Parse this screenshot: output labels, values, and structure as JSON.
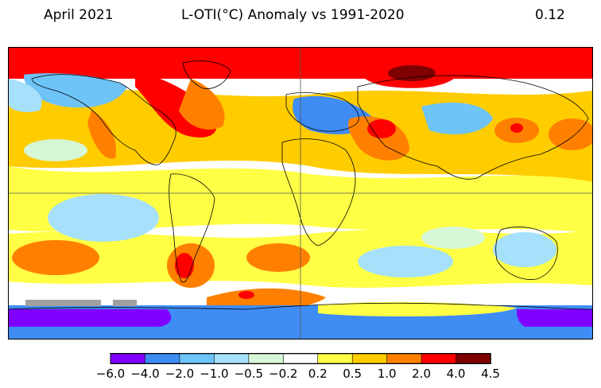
{
  "header": {
    "left": "April 2021",
    "center": "L-OTI(°C) Anomaly vs 1991-2020",
    "right": "0.12"
  },
  "legend": {
    "bins": [
      {
        "from": "-6.0",
        "to": "-4.0",
        "color": "#7f00ff"
      },
      {
        "from": "-4.0",
        "to": "-2.0",
        "color": "#3f8cf5"
      },
      {
        "from": "-2.0",
        "to": "-1.0",
        "color": "#6ec3f7"
      },
      {
        "from": "-1.0",
        "to": "-0.5",
        "color": "#a6e0fb"
      },
      {
        "from": "-0.5",
        "to": "-0.2",
        "color": "#d6f7d6"
      },
      {
        "from": "-0.2",
        "to": "0.2",
        "color": "#ffffff"
      },
      {
        "from": "0.2",
        "to": "0.5",
        "color": "#ffff46"
      },
      {
        "from": "0.5",
        "to": "1.0",
        "color": "#ffcc00"
      },
      {
        "from": "1.0",
        "to": "2.0",
        "color": "#ff8000"
      },
      {
        "from": "2.0",
        "to": "4.0",
        "color": "#ff0000"
      },
      {
        "from": "4.0",
        "to": "4.5",
        "color": "#7f0000"
      }
    ],
    "tick_labels": [
      "−6.0",
      "−4.0",
      "−2.0",
      "−1.0",
      "−0.5",
      "−0.2",
      "0.2",
      "0.5",
      "1.0",
      "2.0",
      "4.0",
      "4.5"
    ]
  },
  "map": {
    "projection": "equirectangular",
    "missing_color": "#a0a0a0",
    "outline_color": "#000000"
  }
}
